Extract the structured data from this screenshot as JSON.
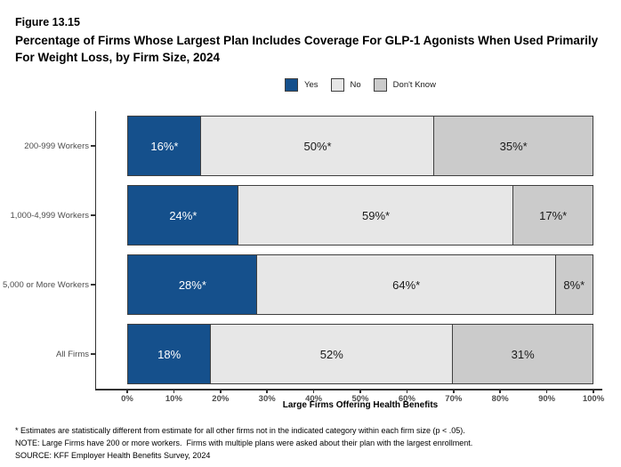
{
  "header": {
    "figure_number": "Figure 13.15",
    "title": "Percentage of Firms Whose Largest Plan Includes Coverage For GLP-1 Agonists When Used Primarily For Weight Loss, by Firm Size, 2024"
  },
  "colors": {
    "yes": "#15508C",
    "no": "#E7E7E7",
    "dont_know": "#CBCBCB",
    "segment_border": "#3F3F3F",
    "axis_line": "#333333",
    "tick_label": "#4D4D4D"
  },
  "chart_data": {
    "type": "bar",
    "subtype": "horizontal-stacked",
    "categories": [
      "200-999 Workers",
      "1,000-4,999 Workers",
      "5,000 or More Workers",
      "All Firms"
    ],
    "series": [
      {
        "name": "Yes",
        "color": "#15508C",
        "text_color": "#FFFFFF",
        "values": [
          16,
          24,
          28,
          18
        ],
        "labels": [
          "16%*",
          "24%*",
          "28%*",
          "18%"
        ]
      },
      {
        "name": "No",
        "color": "#E7E7E7",
        "text_color": "#1A1A1A",
        "values": [
          50,
          59,
          64,
          52
        ],
        "labels": [
          "50%*",
          "59%*",
          "64%*",
          "52%"
        ]
      },
      {
        "name": "Don't Know",
        "color": "#CBCBCB",
        "text_color": "#1A1A1A",
        "values": [
          35,
          17,
          8,
          31
        ],
        "labels": [
          "35%*",
          "17%*",
          "8%*",
          "31%"
        ]
      }
    ],
    "xlabel": "Large Firms Offering Health Benefits",
    "x_ticks": [
      "0%",
      "10%",
      "20%",
      "30%",
      "40%",
      "50%",
      "60%",
      "70%",
      "80%",
      "90%",
      "100%"
    ],
    "xlim": [
      0,
      100
    ],
    "grid": false,
    "legend_position": "top-center"
  },
  "footnotes": [
    "* Estimates are statistically different from estimate for all other firms not in the indicated category within each firm size (p < .05).",
    "NOTE: Large Firms have 200 or more workers.  Firms with multiple plans were asked about their plan with the largest enrollment.",
    "SOURCE: KFF Employer Health Benefits Survey, 2024"
  ]
}
